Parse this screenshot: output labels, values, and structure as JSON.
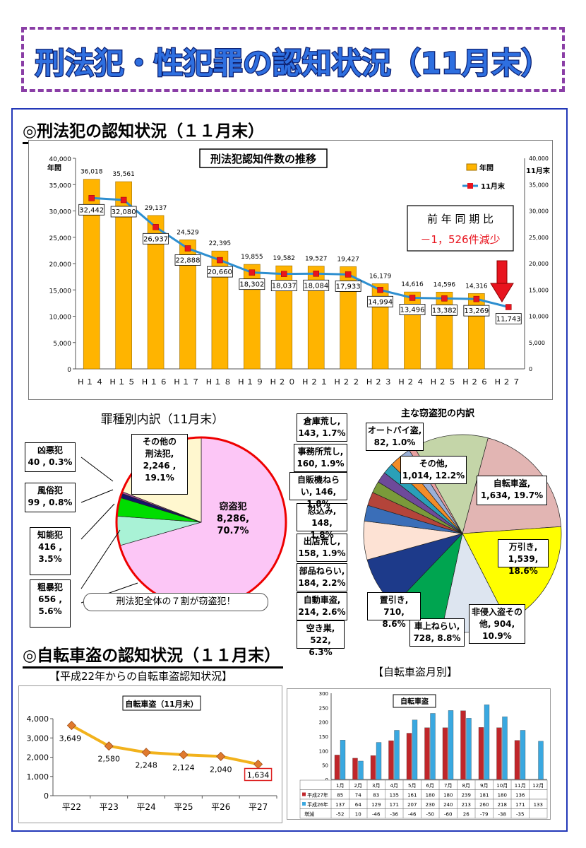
{
  "header": {
    "title": "刑法犯・性犯罪の認知状況（11月末）"
  },
  "section1": {
    "title": "◎刑法犯の認知状況（１１月末）"
  },
  "section2": {
    "title": "◎自転車盗の認知状況（１１月末）"
  },
  "colors": {
    "bar": "#ffb400",
    "line": "#2e8fd0",
    "marker": "#e8141e",
    "banner_border": "#8a3ea6",
    "frame": "#2338b8"
  },
  "chart_data": [
    {
      "type": "bar",
      "title": "刑法犯認知件数の推移",
      "categories": [
        "H１４",
        "H１５",
        "H１６",
        "H１７",
        "H１８",
        "H１９",
        "H２０",
        "H２１",
        "H２２",
        "H２３",
        "H２４",
        "H２５",
        "H２６",
        "H２７"
      ],
      "series": [
        {
          "name": "年間",
          "type": "bar",
          "values": [
            36018,
            35561,
            29137,
            24529,
            22395,
            19855,
            19582,
            19527,
            19427,
            16179,
            14616,
            14596,
            14316,
            null
          ]
        },
        {
          "name": "11月末",
          "type": "line",
          "values": [
            32442,
            32080,
            26937,
            22888,
            20660,
            18302,
            18037,
            18084,
            17933,
            14994,
            13496,
            13382,
            13269,
            11743
          ]
        }
      ],
      "left_axis_label": "年間",
      "right_axis_label": "11月末",
      "ylim": [
        0,
        40000
      ],
      "yticks": [
        "0",
        "5,000",
        "10,000",
        "15,000",
        "20,000",
        "25,000",
        "30,000",
        "35,000",
        "40,000"
      ],
      "bar_labels": [
        "36,018",
        "35,561",
        "29,137",
        "24,529",
        "22,395",
        "19,855",
        "19,582",
        "19,527",
        "19,427",
        "16,179",
        "14,616",
        "14,596",
        "14,316"
      ],
      "line_labels": [
        "32,442",
        "32,080",
        "26,937",
        "22,888",
        "20,660",
        "18,302",
        "18,037",
        "18,084",
        "17,933",
        "14,994",
        "13,496",
        "13,382",
        "13,269",
        "11,743"
      ],
      "annotation": {
        "line1": "前 年 同 期 比",
        "line2": "－1，526件減少"
      }
    },
    {
      "type": "pie",
      "title": "罪種別内訳（11月末）",
      "slices": [
        {
          "name": "窃盗犯",
          "value": 8286,
          "percent": 70.7,
          "color": "#fcc6f6"
        },
        {
          "name": "粗暴犯",
          "value": 656,
          "percent": 5.6,
          "color": "#a9f2d6"
        },
        {
          "name": "知能犯",
          "value": 416,
          "percent": 3.5,
          "color": "#00dd00"
        },
        {
          "name": "風俗犯",
          "value": 99,
          "percent": 0.8,
          "color": "#141468"
        },
        {
          "name": "凶悪犯",
          "value": 40,
          "percent": 0.3,
          "color": "#a94a9e"
        },
        {
          "name": "その他の刑法犯",
          "value": 2246,
          "percent": 19.1,
          "color": "#fff7cf"
        }
      ],
      "labels": {
        "theft": [
          "窃盗犯",
          "8,286,",
          "70.7%"
        ],
        "violent": [
          "粗暴犯",
          "656 ,",
          "5.6%"
        ],
        "intel": [
          "知能犯",
          "416 ,",
          "3.5%"
        ],
        "moral": [
          "風俗犯",
          "99 , 0.8%"
        ],
        "heinous": [
          "凶悪犯",
          "40 , 0.3%"
        ],
        "other": [
          "その他の",
          "刑法犯,",
          "2,246 ,",
          "19.1%"
        ]
      },
      "note": "刑法犯全体の７割が窃盗犯！"
    },
    {
      "type": "pie",
      "title": "主な窃盗犯の内訳",
      "slices": [
        {
          "name": "自転車盗",
          "value": 1634,
          "percent": 19.7,
          "color": "#e2b5b3"
        },
        {
          "name": "万引き",
          "value": 1539,
          "percent": 18.6,
          "color": "#ffff00"
        },
        {
          "name": "非侵入盗その他",
          "value": 904,
          "percent": 10.9,
          "color": "#dde5f0"
        },
        {
          "name": "車上ねらい",
          "value": 728,
          "percent": 8.8,
          "color": "#00a550"
        },
        {
          "name": "置引き",
          "value": 710,
          "percent": 8.6,
          "color": "#1d3a8a"
        },
        {
          "name": "空き巣",
          "value": 522,
          "percent": 6.3,
          "color": "#fde2d4"
        },
        {
          "name": "自動車盗",
          "value": 214,
          "percent": 2.6,
          "color": "#3a6eb8"
        },
        {
          "name": "部品ねらい",
          "value": 184,
          "percent": 2.2,
          "color": "#b4443a"
        },
        {
          "name": "出店荒し",
          "value": 158,
          "percent": 1.9,
          "color": "#7a9a3a"
        },
        {
          "name": "忍込み",
          "value": 148,
          "percent": 1.8,
          "color": "#6e4a9a"
        },
        {
          "name": "自販機ねらい",
          "value": 146,
          "percent": 1.8,
          "color": "#2aa0b8"
        },
        {
          "name": "事務所荒し",
          "value": 160,
          "percent": 1.9,
          "color": "#f28c28"
        },
        {
          "name": "倉庫荒し",
          "value": 143,
          "percent": 1.7,
          "color": "#9ab0d8"
        },
        {
          "name": "オートバイ盗",
          "value": 82,
          "percent": 1.0,
          "color": "#e8a0a0"
        },
        {
          "name": "その他",
          "value": 1014,
          "percent": 12.2,
          "color": "#c4d5a8"
        }
      ],
      "labels": {
        "bicycle": [
          "自転車盗,",
          "1,634, 19.7%"
        ],
        "shoplift": [
          "万引き,",
          "1,539, 18.6%"
        ],
        "noninv": [
          "非侵入盗その",
          "他, 904,",
          "10.9%"
        ],
        "car": [
          "車上ねらい,",
          "728, 8.8%"
        ],
        "okibiki": [
          "置引き, 710,",
          "8.6%"
        ],
        "akisu": [
          "空き巣, 522,",
          "6.3%"
        ],
        "autotheft": [
          "自動車盗,",
          "214, 2.6%"
        ],
        "parts": [
          "部品ねらい,",
          "184, 2.2%"
        ],
        "stall": [
          "出店荒し,",
          "158, 1.9%"
        ],
        "shinobi": [
          "忍込み, 148,",
          "1.8%"
        ],
        "vending": [
          "自販機ねら",
          "い, 146, 1.8%"
        ],
        "office": [
          "事務所荒し,",
          "160, 1.9%"
        ],
        "warehouse": [
          "倉庫荒し,",
          "143, 1.7%"
        ],
        "motorcycle": [
          "オートバイ盗,",
          "82, 1.0%"
        ],
        "other": [
          "その他,",
          "1,014, 12.2%"
        ]
      }
    },
    {
      "type": "line",
      "title": "自転車盗（11月末）",
      "caption": "【平成22年からの自転車盗認知状況】",
      "categories": [
        "平22",
        "平23",
        "平24",
        "平25",
        "平26",
        "平27"
      ],
      "values": [
        3649,
        2580,
        2248,
        2124,
        2040,
        1634
      ],
      "value_labels": [
        "3,649",
        "2,580",
        "2,248",
        "2,124",
        "2,040",
        "1,634"
      ],
      "ylim": [
        0,
        4000
      ],
      "yticks": [
        "0",
        "1,000",
        "2,000",
        "3,000",
        "4,000"
      ]
    },
    {
      "type": "bar",
      "title": "自転車盗",
      "caption": "【自転車盗月別】",
      "categories": [
        "1月",
        "2月",
        "3月",
        "4月",
        "5月",
        "6月",
        "7月",
        "8月",
        "9月",
        "10月",
        "11月",
        "12月"
      ],
      "series": [
        {
          "name": "平成27年",
          "values": [
            85,
            74,
            83,
            135,
            161,
            180,
            180,
            239,
            181,
            180,
            136,
            null
          ]
        },
        {
          "name": "平成26年",
          "values": [
            137,
            64,
            129,
            171,
            207,
            230,
            240,
            213,
            260,
            218,
            171,
            133
          ]
        }
      ],
      "diff_label": "増減",
      "diffs": [
        "-52",
        "10",
        "-46",
        "-36",
        "-46",
        "-50",
        "-60",
        "26",
        "-79",
        "-38",
        "-35",
        ""
      ],
      "row27": [
        "85",
        "74",
        "83",
        "135",
        "161",
        "180",
        "180",
        "239",
        "181",
        "180",
        "136",
        ""
      ],
      "row26": [
        "137",
        "64",
        "129",
        "171",
        "207",
        "230",
        "240",
        "213",
        "260",
        "218",
        "171",
        "133"
      ],
      "ylim": [
        0,
        300
      ],
      "yticks": [
        "0",
        "50",
        "100",
        "150",
        "200",
        "250",
        "300"
      ]
    }
  ]
}
